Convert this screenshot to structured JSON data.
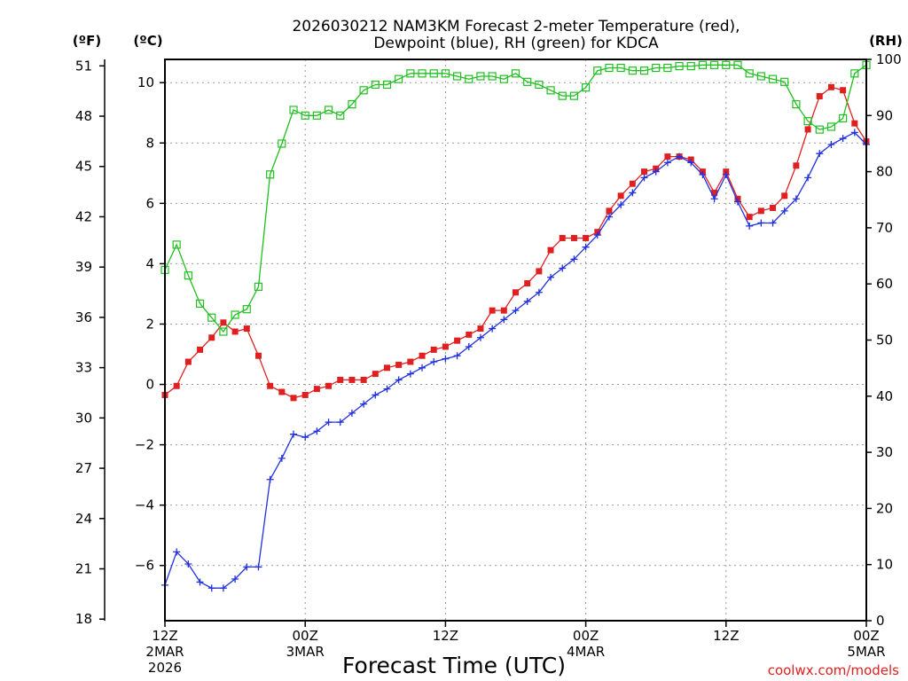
{
  "chart_data": {
    "type": "line",
    "title_line1": "2026030212 NAM3KM Forecast 2-meter Temperature (red),",
    "title_line2": "Dewpoint (blue), RH (green) for KDCA",
    "xlabel": "Forecast Time (UTC)",
    "credit": "coolwx.com/models",
    "unit_left_f": "(ºF)",
    "unit_left_c": "(ºC)",
    "unit_right": "(RH)",
    "x_ticks": [
      {
        "hour": 0,
        "lines": [
          "12Z",
          "2MAR",
          "2026"
        ]
      },
      {
        "hour": 12,
        "lines": [
          "00Z",
          "3MAR"
        ]
      },
      {
        "hour": 24,
        "lines": [
          "12Z"
        ]
      },
      {
        "hour": 36,
        "lines": [
          "00Z",
          "4MAR"
        ]
      },
      {
        "hour": 48,
        "lines": [
          "12Z"
        ]
      },
      {
        "hour": 60,
        "lines": [
          "00Z",
          "5MAR"
        ]
      }
    ],
    "y_left_c": {
      "min": -7.83,
      "max": 10.77,
      "ticks": [
        "-6",
        "-4",
        "-2",
        "0",
        "2",
        "4",
        "6",
        "8",
        "10"
      ]
    },
    "y_left_f": {
      "ticks": [
        "18",
        "21",
        "24",
        "27",
        "30",
        "33",
        "36",
        "39",
        "42",
        "45",
        "48",
        "51"
      ]
    },
    "y_right": {
      "min": 0,
      "max": 100,
      "ticks": [
        "0",
        "10",
        "20",
        "30",
        "40",
        "50",
        "60",
        "70",
        "80",
        "90",
        "100"
      ]
    },
    "x_step_hours": 1,
    "series": [
      {
        "name": "Temperature (°C)",
        "color": "#e02020",
        "marker": "filled-square",
        "axis": "celsius",
        "values": [
          -0.35,
          -0.05,
          0.75,
          1.15,
          1.55,
          2.05,
          1.75,
          1.85,
          0.95,
          -0.05,
          -0.25,
          -0.45,
          -0.35,
          -0.15,
          -0.05,
          0.15,
          0.15,
          0.15,
          0.35,
          0.55,
          0.65,
          0.75,
          0.95,
          1.15,
          1.25,
          1.45,
          1.65,
          1.85,
          2.45,
          2.45,
          3.05,
          3.35,
          3.75,
          4.45,
          4.85,
          4.85,
          4.85,
          5.05,
          5.75,
          6.25,
          6.65,
          7.05,
          7.15,
          7.55,
          7.55,
          7.45,
          7.05,
          6.35,
          7.05,
          6.15,
          5.55,
          5.75,
          5.85,
          6.25,
          7.25,
          8.45,
          9.55,
          9.85,
          9.75,
          8.65,
          8.05
        ]
      },
      {
        "name": "Dewpoint (°C)",
        "color": "#2030e0",
        "marker": "plus",
        "axis": "celsius",
        "values": [
          -6.65,
          -5.55,
          -5.95,
          -6.55,
          -6.75,
          -6.75,
          -6.45,
          -6.05,
          -6.05,
          -3.15,
          -2.45,
          -1.65,
          -1.75,
          -1.55,
          -1.25,
          -1.25,
          -0.95,
          -0.65,
          -0.35,
          -0.15,
          0.15,
          0.35,
          0.55,
          0.75,
          0.85,
          0.95,
          1.25,
          1.55,
          1.85,
          2.15,
          2.45,
          2.75,
          3.05,
          3.55,
          3.85,
          4.15,
          4.55,
          4.95,
          5.55,
          5.95,
          6.35,
          6.85,
          7.05,
          7.35,
          7.55,
          7.35,
          6.95,
          6.15,
          6.95,
          6.05,
          5.25,
          5.35,
          5.35,
          5.75,
          6.15,
          6.85,
          7.65,
          7.95,
          8.15,
          8.35,
          7.95
        ]
      },
      {
        "name": "RH (%)",
        "color": "#20c020",
        "marker": "open-square",
        "axis": "rh",
        "values": [
          62.5,
          67,
          61.5,
          56.5,
          54,
          51.5,
          54.5,
          55.5,
          59.5,
          79.5,
          85,
          91,
          90,
          90,
          91,
          90,
          92,
          94.5,
          95.5,
          95.5,
          96.5,
          97.5,
          97.5,
          97.5,
          97.5,
          97,
          96.5,
          97,
          97,
          96.5,
          97.5,
          96,
          95.5,
          94.5,
          93.5,
          93.5,
          95,
          98,
          98.5,
          98.5,
          98,
          98,
          98.5,
          98.5,
          98.8,
          98.8,
          99,
          99,
          99,
          99,
          97.5,
          97,
          96.5,
          96,
          92,
          89,
          87.5,
          88,
          89.5,
          97.5,
          99
        ]
      }
    ]
  }
}
